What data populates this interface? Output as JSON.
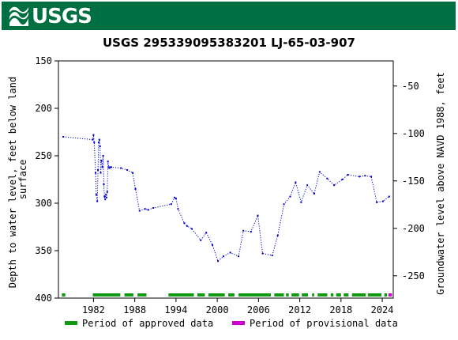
{
  "banner": {
    "logo_text": "USGS",
    "background": "#006f41"
  },
  "chart_data": {
    "type": "scatter",
    "title": "USGS 295339095383201 LJ-65-03-907",
    "xlabel": "",
    "ylabel_left": "Depth to water level, feet below land surface",
    "ylabel_left_lines": [
      "Depth to water level, feet below land",
      "surface"
    ],
    "ylabel_right": "Groundwater level above NAVD 1988, feet",
    "xlim": [
      1976.9,
      2025.6
    ],
    "ylim_left": [
      150,
      400
    ],
    "ylim_right": [
      -23.5,
      -273.5
    ],
    "left_reversed": true,
    "x_ticks": [
      1982,
      1988,
      1994,
      2000,
      2006,
      2012,
      2018,
      2024
    ],
    "y_ticks_left": [
      150,
      200,
      250,
      300,
      350,
      400
    ],
    "y_ticks_right": [
      -50,
      -100,
      -150,
      -200,
      -250
    ],
    "series": [
      {
        "name": "",
        "color": "#0000cc",
        "style": "dotted line with point markers",
        "x": [
          1977.6,
          1981.9,
          1982.0,
          1982.1,
          1982.3,
          1982.4,
          1982.55,
          1982.65,
          1982.75,
          1982.85,
          1982.95,
          1983.05,
          1983.15,
          1983.3,
          1983.4,
          1983.5,
          1983.6,
          1983.7,
          1983.8,
          1983.9,
          1984.0,
          1984.1,
          1984.2,
          1984.3,
          1984.45,
          1984.6,
          1986.0,
          1986.9,
          1987.7,
          1988.1,
          1988.7,
          1989.5,
          1989.95,
          1990.7,
          1993.3,
          1993.8,
          1994.0,
          1994.3,
          1995.2,
          1995.6,
          1996.3,
          1997.6,
          1998.4,
          1999.3,
          2000.1,
          2000.9,
          2001.9,
          2003.1,
          2003.8,
          2004.9,
          2005.9,
          2006.6,
          2008.0,
          2008.8,
          2009.7,
          2010.6,
          2011.4,
          2012.2,
          2013.1,
          2014.1,
          2014.9,
          2016.0,
          2017.0,
          2018.2,
          2019.0,
          2020.7,
          2021.5,
          2022.4,
          2023.2,
          2024.1,
          2025.0
        ],
        "y": [
          230,
          233,
          228,
          236,
          268,
          291,
          298,
          265,
          236,
          233,
          240,
          268,
          255,
          262,
          250,
          280,
          293,
          296,
          291,
          294,
          288,
          256,
          262,
          263,
          262,
          262,
          263,
          265,
          268,
          285,
          308,
          306,
          307,
          305,
          301,
          294,
          295,
          306,
          321,
          324,
          327,
          339,
          331,
          344,
          361,
          356,
          352,
          356,
          329,
          330,
          313,
          353,
          355,
          334,
          301,
          293,
          278,
          299,
          281,
          290,
          267,
          274,
          281,
          275,
          270,
          272,
          271,
          272,
          299,
          298,
          293
        ]
      }
    ],
    "period_bars": {
      "approved": {
        "label": "Period of approved data",
        "color": "#119911",
        "spans": [
          [
            1977.4,
            1977.9
          ],
          [
            1981.9,
            1985.9
          ],
          [
            1986.5,
            1987.8
          ],
          [
            1988.4,
            1989.7
          ],
          [
            1992.9,
            1996.6
          ],
          [
            1997.1,
            1998.2
          ],
          [
            1998.7,
            2001.1
          ],
          [
            2001.6,
            2002.5
          ],
          [
            2003.1,
            2007.8
          ],
          [
            2008.3,
            2009.7
          ],
          [
            2010.0,
            2010.4
          ],
          [
            2010.8,
            2011.9
          ],
          [
            2012.3,
            2013.2
          ],
          [
            2013.8,
            2014.1
          ],
          [
            2014.6,
            2016.0
          ],
          [
            2016.5,
            2016.9
          ],
          [
            2017.3,
            2018.0
          ],
          [
            2018.4,
            2019.1
          ],
          [
            2019.6,
            2021.6
          ],
          [
            2021.9,
            2023.9
          ],
          [
            2024.3,
            2024.7
          ]
        ],
        "legend_box": "Period of approved data"
      },
      "provisional": {
        "label": "Period of provisional data",
        "color": "#cc00cc",
        "spans": [
          [
            2024.9,
            2025.4
          ]
        ]
      }
    }
  }
}
